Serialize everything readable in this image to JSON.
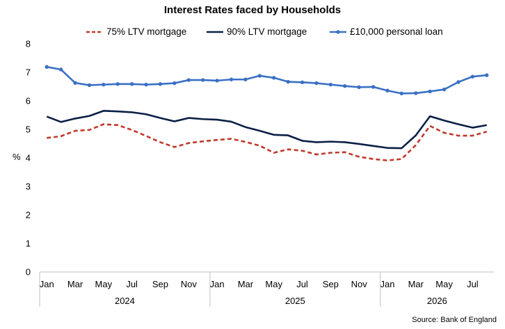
{
  "chart_data": {
    "type": "line",
    "title": "Interest Rates faced by Households",
    "ylabel": "%",
    "ylim": [
      0,
      8
    ],
    "yticks": [
      "0",
      "1",
      "2",
      "3",
      "4",
      "5",
      "6",
      "7",
      "8"
    ],
    "grid": false,
    "legend_position": "top",
    "x_tick_labels": [
      "Jan",
      "Mar",
      "May",
      "Jul",
      "Sep",
      "Nov",
      "Jan",
      "Mar",
      "May",
      "Jul",
      "Sep",
      "Nov",
      "Jan",
      "Mar",
      "May",
      "Jul"
    ],
    "years": [
      "2024",
      "2025",
      "2026"
    ],
    "categories": [
      "Jan 2024",
      "Feb 2024",
      "Mar 2024",
      "Apr 2024",
      "May 2024",
      "Jun 2024",
      "Jul 2024",
      "Aug 2024",
      "Sep 2024",
      "Oct 2024",
      "Nov 2024",
      "Dec 2024",
      "Jan 2025",
      "Feb 2025",
      "Mar 2025",
      "Apr 2025",
      "May 2025",
      "Jun 2025",
      "Jul 2025",
      "Aug 2025",
      "Sep 2025",
      "Oct 2025",
      "Nov 2025",
      "Dec 2025",
      "Jan 2026",
      "Feb 2026",
      "Mar 2026",
      "Apr 2026",
      "May 2026",
      "Jun 2026",
      "Jul 2026",
      "Aug 2026"
    ],
    "series": [
      {
        "name": "75% LTV mortgage",
        "color": "#c0392b",
        "style": "dashed",
        "marker": "none",
        "values": [
          4.7,
          4.76,
          4.95,
          4.98,
          5.18,
          5.15,
          4.98,
          4.77,
          4.55,
          4.38,
          4.52,
          4.58,
          4.63,
          4.67,
          4.56,
          4.43,
          4.18,
          4.3,
          4.25,
          4.12,
          4.18,
          4.2,
          4.04,
          3.96,
          3.91,
          3.96,
          4.45,
          5.12,
          4.88,
          4.78,
          4.78,
          4.92
        ]
      },
      {
        "name": "90% LTV mortgage",
        "color": "#0b1f45",
        "style": "solid",
        "marker": "none",
        "values": [
          5.45,
          5.26,
          5.38,
          5.47,
          5.65,
          5.63,
          5.6,
          5.53,
          5.4,
          5.28,
          5.4,
          5.36,
          5.34,
          5.27,
          5.08,
          4.95,
          4.81,
          4.79,
          4.6,
          4.55,
          4.57,
          4.55,
          4.49,
          4.42,
          4.35,
          4.34,
          4.79,
          5.46,
          5.31,
          5.18,
          5.06,
          5.15
        ]
      },
      {
        "name": "£10,000 personal loan",
        "color": "#3a70c4",
        "style": "solid",
        "marker": "circle",
        "values": [
          7.19,
          7.1,
          6.63,
          6.55,
          6.57,
          6.59,
          6.59,
          6.57,
          6.59,
          6.62,
          6.73,
          6.73,
          6.71,
          6.75,
          6.75,
          6.88,
          6.81,
          6.67,
          6.65,
          6.62,
          6.57,
          6.52,
          6.48,
          6.49,
          6.36,
          6.26,
          6.27,
          6.33,
          6.4,
          6.66,
          6.85,
          6.9
        ]
      }
    ]
  },
  "source": "Source: Bank of England"
}
